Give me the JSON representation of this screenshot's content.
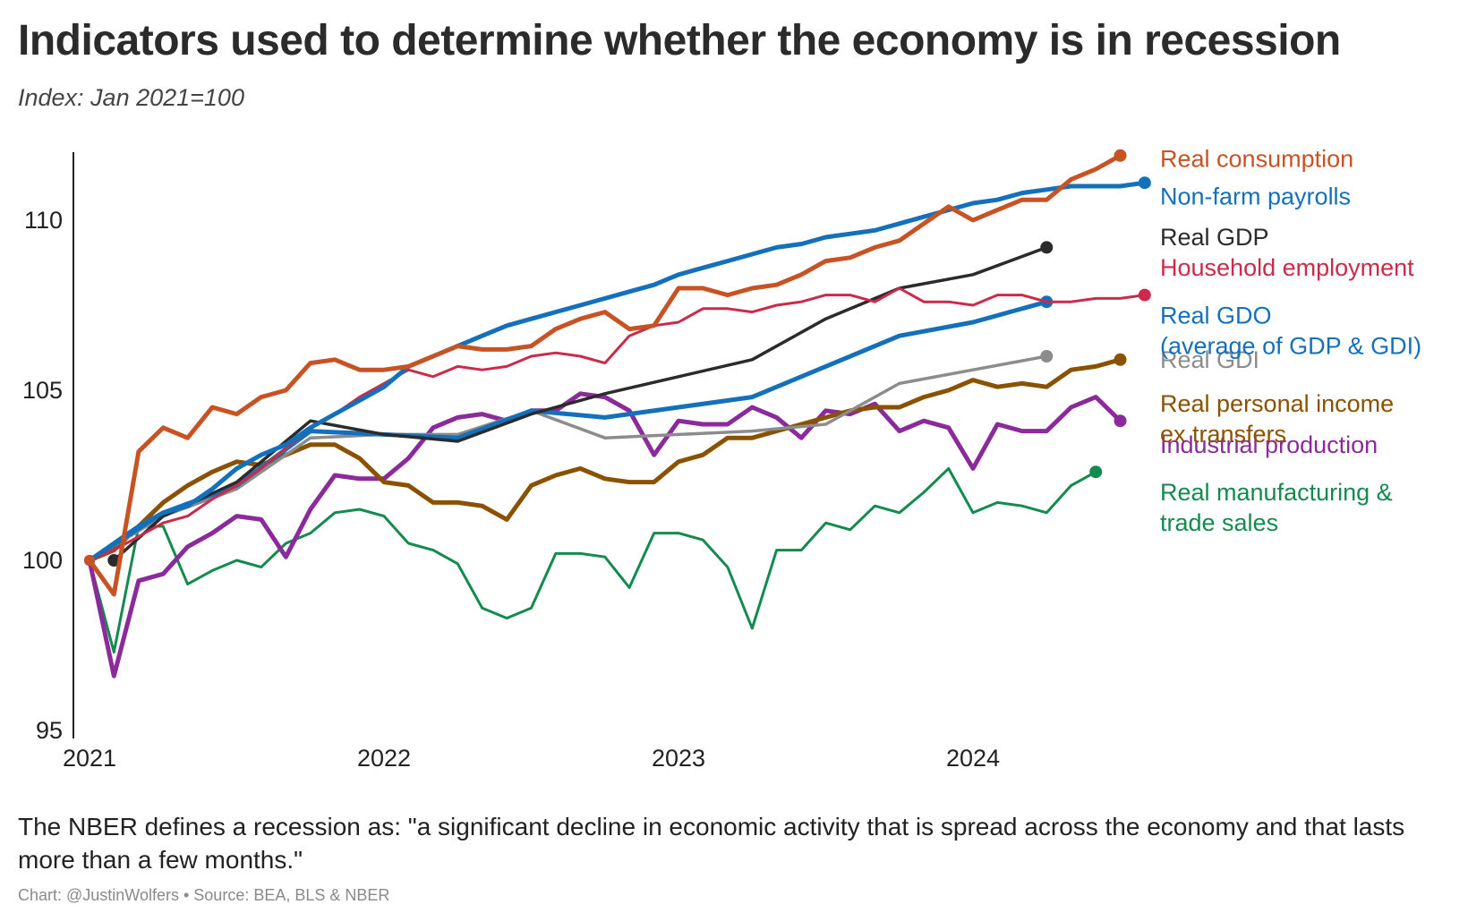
{
  "header": {
    "title": "Indicators used to determine whether the economy is in recession",
    "subtitle": "Index: Jan 2021=100"
  },
  "footer": {
    "note": "The NBER defines a recession as: \"a significant decline in economic activity that is spread across the economy and that lasts more than a few months.\"",
    "credit": "Chart: @JustinWolfers • Source: BEA, BLS & NBER"
  },
  "chart_data": {
    "type": "line",
    "title": "Indicators used to determine whether the economy is in recession",
    "subtitle": "Index: Jan 2021=100",
    "x_unit": "year",
    "xlim": [
      2020.92,
      2025.0
    ],
    "ylim": [
      95,
      112
    ],
    "x_ticks": [
      2021,
      2022,
      2023,
      2024
    ],
    "x_tick_labels": [
      "2021",
      "2022",
      "2023",
      "2024"
    ],
    "y_ticks": [
      95,
      100,
      105,
      110
    ],
    "y_tick_labels": [
      "95",
      "100",
      "105",
      "110"
    ],
    "grid": false,
    "legend": "direct labels at right end of each line",
    "series": [
      {
        "name": "Real manufacturing & trade sales",
        "label_lines": [
          "Real manufacturing &",
          "trade sales"
        ],
        "color": "#138a4e",
        "stroke": 3,
        "x": [
          2021.0,
          2021.083,
          2021.167,
          2021.25,
          2021.333,
          2021.417,
          2021.5,
          2021.583,
          2021.667,
          2021.75,
          2021.833,
          2021.917,
          2022.0,
          2022.083,
          2022.167,
          2022.25,
          2022.333,
          2022.417,
          2022.5,
          2022.583,
          2022.667,
          2022.75,
          2022.833,
          2022.917,
          2023.0,
          2023.083,
          2023.167,
          2023.25,
          2023.333,
          2023.417,
          2023.5,
          2023.583,
          2023.667,
          2023.75,
          2023.833,
          2023.917,
          2024.0,
          2024.083,
          2024.167,
          2024.25,
          2024.333,
          2024.417,
          2024.5
        ],
        "y": [
          100.0,
          97.3,
          101.0,
          101.0,
          99.3,
          99.7,
          100.0,
          99.8,
          100.5,
          100.8,
          101.4,
          101.5,
          101.3,
          100.5,
          100.3,
          99.9,
          98.6,
          98.3,
          98.6,
          100.2,
          100.2,
          100.1,
          99.2,
          100.8,
          100.8,
          100.6,
          99.8,
          98.0,
          100.3,
          100.3,
          101.1,
          100.9,
          101.6,
          101.4,
          102.0,
          102.7,
          101.4,
          101.7,
          101.6,
          101.4,
          102.2,
          102.6,
          null
        ],
        "end_marker": true,
        "label_value": 102.0
      },
      {
        "name": "Industrial production",
        "color": "#8b2a9a",
        "stroke": 5,
        "x": [
          2021.0,
          2021.083,
          2021.167,
          2021.25,
          2021.333,
          2021.417,
          2021.5,
          2021.583,
          2021.667,
          2021.75,
          2021.833,
          2021.917,
          2022.0,
          2022.083,
          2022.167,
          2022.25,
          2022.333,
          2022.417,
          2022.5,
          2022.583,
          2022.667,
          2022.75,
          2022.833,
          2022.917,
          2023.0,
          2023.083,
          2023.167,
          2023.25,
          2023.333,
          2023.417,
          2023.5,
          2023.583,
          2023.667,
          2023.75,
          2023.833,
          2023.917,
          2024.0,
          2024.083,
          2024.167,
          2024.25,
          2024.333,
          2024.417,
          2024.5
        ],
        "y": [
          100.0,
          96.6,
          99.4,
          99.6,
          100.4,
          100.8,
          101.3,
          101.2,
          100.1,
          101.5,
          102.5,
          102.4,
          102.4,
          103.0,
          103.9,
          104.2,
          104.3,
          104.1,
          104.4,
          104.4,
          104.9,
          104.8,
          104.4,
          103.1,
          104.1,
          104.0,
          104.0,
          104.5,
          104.2,
          103.6,
          104.4,
          104.3,
          104.6,
          103.8,
          104.1,
          103.9,
          102.7,
          104.0,
          103.8,
          103.8,
          104.5,
          104.8,
          104.1
        ],
        "end_marker": true,
        "label_value": 103.4
      },
      {
        "name": "Real personal income ex transfers",
        "label_lines": [
          "Real personal income",
          "ex transfers"
        ],
        "color": "#8a5200",
        "stroke": 5,
        "x": [
          2021.0,
          2021.083,
          2021.167,
          2021.25,
          2021.333,
          2021.417,
          2021.5,
          2021.583,
          2021.667,
          2021.75,
          2021.833,
          2021.917,
          2022.0,
          2022.083,
          2022.167,
          2022.25,
          2022.333,
          2022.417,
          2022.5,
          2022.583,
          2022.667,
          2022.75,
          2022.833,
          2022.917,
          2023.0,
          2023.083,
          2023.167,
          2023.25,
          2023.333,
          2023.417,
          2023.5,
          2023.583,
          2023.667,
          2023.75,
          2023.833,
          2023.917,
          2024.0,
          2024.083,
          2024.167,
          2024.25,
          2024.333,
          2024.417,
          2024.5
        ],
        "y": [
          100.0,
          100.3,
          101.0,
          101.7,
          102.2,
          102.6,
          102.9,
          102.8,
          103.1,
          103.4,
          103.4,
          103.0,
          102.3,
          102.2,
          101.7,
          101.7,
          101.6,
          101.2,
          102.2,
          102.5,
          102.7,
          102.4,
          102.3,
          102.3,
          102.9,
          103.1,
          103.6,
          103.6,
          103.8,
          104.0,
          104.2,
          104.4,
          104.5,
          104.5,
          104.8,
          105.0,
          105.3,
          105.1,
          105.2,
          105.1,
          105.6,
          105.7,
          105.9
        ],
        "end_marker": true,
        "label_value": 104.6
      },
      {
        "name": "Real GDI",
        "color": "#8c8c8c",
        "stroke": 3.5,
        "x": [
          2021.0,
          2021.25,
          2021.5,
          2021.75,
          2022.0,
          2022.25,
          2022.5,
          2022.75,
          2023.0,
          2023.25,
          2023.5,
          2023.75,
          2024.0,
          2024.25
        ],
        "y": [
          100.0,
          101.3,
          102.1,
          103.6,
          103.7,
          103.7,
          104.4,
          103.6,
          103.7,
          103.8,
          104.0,
          105.2,
          105.6,
          106.0
        ],
        "end_marker": true,
        "label_value": 105.9
      },
      {
        "name": "Real GDO",
        "label_lines": [
          "Real GDO",
          "(average of GDP & GDI)"
        ],
        "color": "#1470bb",
        "stroke": 5,
        "x": [
          2021.0,
          2021.25,
          2021.5,
          2021.75,
          2022.0,
          2022.25,
          2022.5,
          2022.75,
          2023.0,
          2023.25,
          2023.5,
          2023.75,
          2024.0,
          2024.25
        ],
        "y": [
          100.0,
          101.4,
          102.2,
          103.8,
          103.7,
          103.6,
          104.4,
          104.2,
          104.5,
          104.8,
          105.7,
          106.6,
          107.0,
          107.6
        ],
        "end_marker": true,
        "label_value": 107.2
      },
      {
        "name": "Real GDP",
        "color": "#2b2b2b",
        "stroke": 3.5,
        "x": [
          2021.083,
          2021.25,
          2021.5,
          2021.75,
          2022.0,
          2022.25,
          2022.5,
          2022.75,
          2023.0,
          2023.25,
          2023.5,
          2023.75,
          2024.0,
          2024.25
        ],
        "y": [
          100.0,
          101.3,
          102.3,
          104.1,
          103.7,
          103.5,
          104.3,
          104.9,
          105.4,
          105.9,
          107.1,
          108.0,
          108.4,
          109.2
        ],
        "start_marker": true,
        "end_marker": true,
        "label_value": 109.5
      },
      {
        "name": "Household employment",
        "color": "#cc2a4a",
        "stroke": 3,
        "x": [
          2021.0,
          2021.083,
          2021.167,
          2021.25,
          2021.333,
          2021.417,
          2021.5,
          2021.583,
          2021.667,
          2021.75,
          2021.833,
          2021.917,
          2022.0,
          2022.083,
          2022.167,
          2022.25,
          2022.333,
          2022.417,
          2022.5,
          2022.583,
          2022.667,
          2022.75,
          2022.833,
          2022.917,
          2023.0,
          2023.083,
          2023.167,
          2023.25,
          2023.333,
          2023.417,
          2023.5,
          2023.583,
          2023.667,
          2023.75,
          2023.833,
          2023.917,
          2024.0,
          2024.083,
          2024.167,
          2024.25,
          2024.333,
          2024.417,
          2024.5,
          2024.583
        ],
        "y": [
          100.0,
          100.3,
          100.7,
          101.1,
          101.3,
          101.8,
          102.2,
          102.7,
          103.3,
          103.9,
          104.3,
          104.8,
          105.2,
          105.6,
          105.4,
          105.7,
          105.6,
          105.7,
          106.0,
          106.1,
          106.0,
          105.8,
          106.6,
          106.9,
          107.0,
          107.4,
          107.4,
          107.3,
          107.5,
          107.6,
          107.8,
          107.8,
          107.6,
          108.0,
          107.6,
          107.6,
          107.5,
          107.8,
          107.8,
          107.6,
          107.6,
          107.7,
          107.7,
          107.8
        ],
        "end_marker": true,
        "label_value": 108.6
      },
      {
        "name": "Non-farm payrolls",
        "color": "#1470bb",
        "stroke": 5,
        "x": [
          2021.0,
          2021.083,
          2021.167,
          2021.25,
          2021.333,
          2021.417,
          2021.5,
          2021.583,
          2021.667,
          2021.75,
          2021.833,
          2021.917,
          2022.0,
          2022.083,
          2022.167,
          2022.25,
          2022.333,
          2022.417,
          2022.5,
          2022.583,
          2022.667,
          2022.75,
          2022.833,
          2022.917,
          2023.0,
          2023.083,
          2023.167,
          2023.25,
          2023.333,
          2023.417,
          2023.5,
          2023.583,
          2023.667,
          2023.75,
          2023.833,
          2023.917,
          2024.0,
          2024.083,
          2024.167,
          2024.25,
          2024.333,
          2024.417,
          2024.5,
          2024.583
        ],
        "y": [
          100.0,
          100.5,
          101.0,
          101.4,
          101.6,
          102.1,
          102.7,
          103.1,
          103.4,
          103.9,
          104.3,
          104.7,
          105.1,
          105.7,
          106.0,
          106.3,
          106.6,
          106.9,
          107.1,
          107.3,
          107.5,
          107.7,
          107.9,
          108.1,
          108.4,
          108.6,
          108.8,
          109.0,
          109.2,
          109.3,
          109.5,
          109.6,
          109.7,
          109.9,
          110.1,
          110.3,
          110.5,
          110.6,
          110.8,
          110.9,
          111.0,
          111.0,
          111.0,
          111.1
        ],
        "end_marker": true,
        "label_value": 110.7
      },
      {
        "name": "Real consumption",
        "color": "#c75325",
        "stroke": 5,
        "x": [
          2021.0,
          2021.083,
          2021.167,
          2021.25,
          2021.333,
          2021.417,
          2021.5,
          2021.583,
          2021.667,
          2021.75,
          2021.833,
          2021.917,
          2022.0,
          2022.083,
          2022.167,
          2022.25,
          2022.333,
          2022.417,
          2022.5,
          2022.583,
          2022.667,
          2022.75,
          2022.833,
          2022.917,
          2023.0,
          2023.083,
          2023.167,
          2023.25,
          2023.333,
          2023.417,
          2023.5,
          2023.583,
          2023.667,
          2023.75,
          2023.833,
          2023.917,
          2024.0,
          2024.083,
          2024.167,
          2024.25,
          2024.333,
          2024.417,
          2024.5
        ],
        "y": [
          100.0,
          99.0,
          103.2,
          103.9,
          103.6,
          104.5,
          104.3,
          104.8,
          105.0,
          105.8,
          105.9,
          105.6,
          105.6,
          105.7,
          106.0,
          106.3,
          106.2,
          106.2,
          106.3,
          106.8,
          107.1,
          107.3,
          106.8,
          106.9,
          108.0,
          108.0,
          107.8,
          108.0,
          108.1,
          108.4,
          108.8,
          108.9,
          109.2,
          109.4,
          109.9,
          110.4,
          110.0,
          110.3,
          110.6,
          110.6,
          111.2,
          111.5,
          111.9
        ],
        "end_marker": true,
        "label_value": 111.8
      }
    ]
  }
}
